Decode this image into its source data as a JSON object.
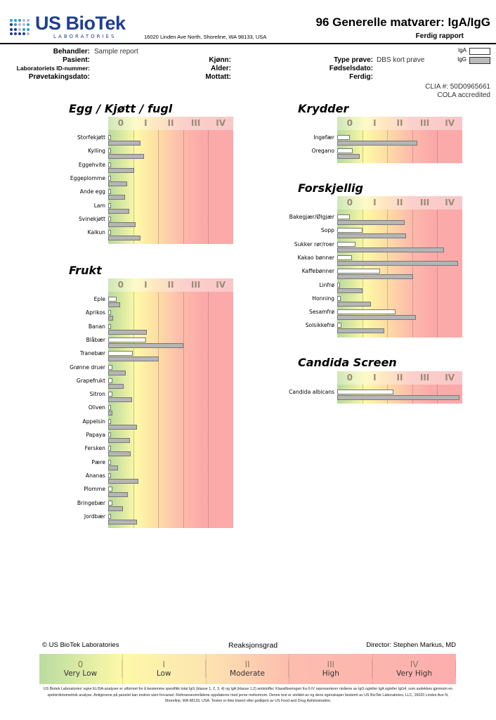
{
  "header": {
    "logo_main": "US BioTek",
    "logo_sub": "LABORATORIES",
    "address": "16020 Linden Ave North, Shoreline, WA 98133, USA",
    "title": "96 Generelle matvarer: IgA/IgG",
    "subtitle": "Ferdig rapport"
  },
  "info": {
    "behandler_label": "Behandler:",
    "behandler_value": "Sample report",
    "pasient_label": "Pasient:",
    "lab_id_label": "Laboratoriets ID-nummer:",
    "provedato_label": "Prøvetakingsdato:",
    "kjonn_label": "Kjønn:",
    "alder_label": "Alder:",
    "mottatt_label": "Mottatt:",
    "type_label": "Type prøve:",
    "type_value": "DBS kort prøve",
    "fodsel_label": "Fødselsdato:",
    "ferdig_label": "Ferdig:",
    "legend_iga": "IgA",
    "legend_igg": "IgG",
    "clia": "CLIA #: 50D0965661",
    "cola": "COLA accredited"
  },
  "classes": [
    "0",
    "I",
    "II",
    "III",
    "IV"
  ],
  "chart_data": {
    "type": "bar",
    "units": "reaction class (0–5 scale)",
    "xlim": [
      0,
      5
    ],
    "series_names": [
      "IgA",
      "IgG"
    ],
    "sections": [
      {
        "title": "Egg / Kjøtt / fugl",
        "items": [
          [
            "Storfekjøtt",
            0.08,
            1.3
          ],
          [
            "Kylling",
            0.08,
            1.43
          ],
          [
            "Eggehvite",
            0.08,
            1.04
          ],
          [
            "Eggeplomme",
            0.08,
            0.76
          ],
          [
            "Ande egg",
            0.08,
            0.67
          ],
          [
            "Lam",
            0.08,
            0.84
          ],
          [
            "Svinekjøtt",
            0.08,
            1.1
          ],
          [
            "Kalkun",
            0.08,
            1.3
          ]
        ]
      },
      {
        "title": "Frukt",
        "items": [
          [
            "Eple",
            0.34,
            0.48
          ],
          [
            "Aprikos",
            0.1,
            0.2
          ],
          [
            "Banan",
            0.1,
            1.55
          ],
          [
            "Blåbær",
            1.52,
            3.0
          ],
          [
            "Tranebær",
            0.98,
            2.02
          ],
          [
            "Grønne druer",
            0.17,
            0.7
          ],
          [
            "Grapefrukt",
            0.17,
            0.62
          ],
          [
            "Sitron",
            0.17,
            0.95
          ],
          [
            "Oliven",
            0.1,
            0.17
          ],
          [
            "Appelsin",
            0.1,
            1.15
          ],
          [
            "Papaya",
            0.1,
            0.87
          ],
          [
            "Fersken",
            0.1,
            0.9
          ],
          [
            "Pære",
            0.1,
            0.4
          ],
          [
            "Ananas",
            0.1,
            1.2
          ],
          [
            "Plomme",
            0.17,
            0.8
          ],
          [
            "Bringebær",
            0.17,
            0.6
          ],
          [
            "Jordbær",
            0.1,
            1.15
          ]
        ]
      },
      {
        "title": "Krydder",
        "items": [
          [
            "Ingefær",
            0.5,
            3.2
          ],
          [
            "Oregano",
            0.62,
            0.9
          ]
        ]
      },
      {
        "title": "Forskjellig",
        "items": [
          [
            "Bakegjær/Ølgjær",
            0.5,
            2.7
          ],
          [
            "Sopp",
            1.0,
            2.75
          ],
          [
            "Sukker rør/roer",
            0.73,
            4.27
          ],
          [
            "Kakao bønner",
            0.6,
            4.83
          ],
          [
            "Kaffebønner",
            1.7,
            3.03
          ],
          [
            "Linfrø",
            0.1,
            1.0
          ],
          [
            "Honning",
            0.13,
            1.35
          ],
          [
            "Sesamfrø",
            2.34,
            3.15
          ],
          [
            "Solsikkefrø",
            0.17,
            1.88
          ]
        ]
      },
      {
        "title": "Candida Screen",
        "items": [
          [
            "Candida albicans",
            2.25,
            4.9
          ]
        ]
      }
    ]
  },
  "footer": {
    "copyright": "© US BioTek Laboratories",
    "scale_title": "Reaksjonsgrad",
    "director": "Director: Stephen Markus, MD",
    "scale": [
      {
        "n": "0",
        "t": "Very Low"
      },
      {
        "n": "I",
        "t": "Low"
      },
      {
        "n": "II",
        "t": "Moderate"
      },
      {
        "n": "III",
        "t": "High"
      },
      {
        "n": "IV",
        "t": "Very High"
      }
    ],
    "disclaimer": "US Biotek Laboratories' egne ELISA-analyser er utformet for å bestemme spesifikk total IgG (klasse 1, 2, 3, 4) og IgA (klasse 1,2) antistoffer. Klassifiseringen fra 0-IV representerer nivåene av IgG og/eller IgA og/eller IgG4, som avdekkes gjennom en spektrofotometrisk analyse. Antigenene på panelet kan endres uten forvarsel. Referanseområdene oppdateres med jevne mellomrom. Denne test er utviklet av og dens egenskaper bestemt av US BioTek Laboratories, LLC, 16020 Linden Ave N, Shoreline, WA 98133, USA. Testen er ikke klarert eller godkjent av US Food and Drug Administration."
  }
}
